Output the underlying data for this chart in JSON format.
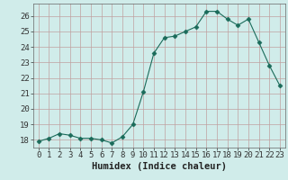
{
  "x": [
    0,
    1,
    2,
    3,
    4,
    5,
    6,
    7,
    8,
    9,
    10,
    11,
    12,
    13,
    14,
    15,
    16,
    17,
    18,
    19,
    20,
    21,
    22,
    23
  ],
  "y": [
    17.9,
    18.1,
    18.4,
    18.3,
    18.1,
    18.1,
    18.0,
    17.8,
    18.2,
    19.0,
    21.1,
    23.6,
    24.6,
    24.7,
    25.0,
    25.3,
    26.3,
    26.3,
    25.8,
    25.4,
    25.8,
    24.3,
    22.8,
    21.5
  ],
  "line_color": "#1a6b5a",
  "marker": "D",
  "marker_size": 2.5,
  "bg_color": "#d0ecea",
  "grid_color": "#c0a0a0",
  "xlabel": "Humidex (Indice chaleur)",
  "xlim": [
    -0.5,
    23.5
  ],
  "ylim": [
    17.5,
    26.8
  ],
  "yticks": [
    18,
    19,
    20,
    21,
    22,
    23,
    24,
    25,
    26
  ],
  "xticks": [
    0,
    1,
    2,
    3,
    4,
    5,
    6,
    7,
    8,
    9,
    10,
    11,
    12,
    13,
    14,
    15,
    16,
    17,
    18,
    19,
    20,
    21,
    22,
    23
  ],
  "xlabel_fontsize": 7.5,
  "tick_fontsize": 6.5
}
